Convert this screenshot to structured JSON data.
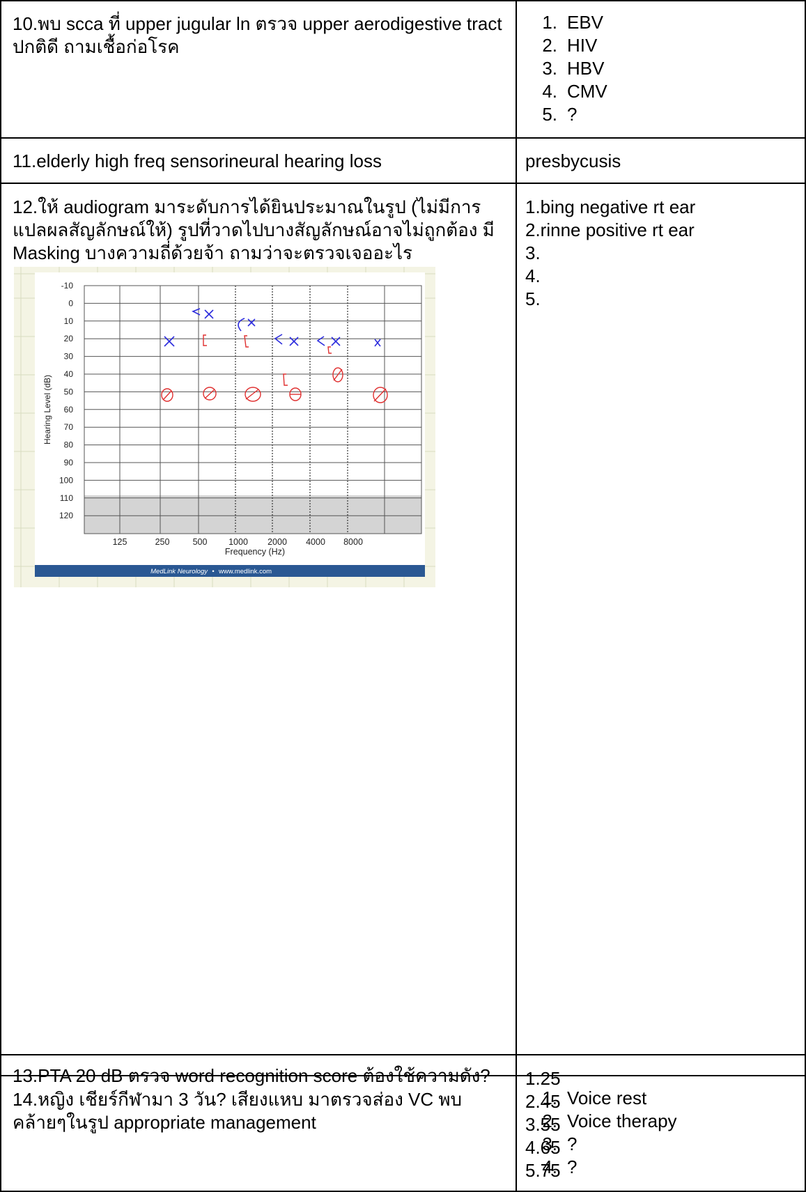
{
  "rows": [
    {
      "question": "10.พบ scca ที่ upper jugular ln ตรวจ upper aerodigestive tract ปกติดี ถามเชื้อก่อโรค",
      "answers": [
        {
          "n": "1.",
          "t": "EBV"
        },
        {
          "n": "2.",
          "t": "HIV"
        },
        {
          "n": "3.",
          "t": "HBV"
        },
        {
          "n": "4.",
          "t": "CMV"
        },
        {
          "n": "5.",
          "t": "?"
        }
      ]
    },
    {
      "question": "11.elderly high freq sensorineural hearing loss",
      "answer": "presbycusis"
    },
    {
      "question": "12.ให้ audiogram มาระดับการได้ยินประมาณในรูป (ไม่มีการแปลผลสัญลักษณ์ให้) รูปที่วาดไปบางสัญลักษณ์อาจไม่ถูกต้อง มี Masking บางความถี่ด้วยจ้า ถามว่าจะตรวจเจออะไร",
      "answers": [
        "1.bing negative rt ear",
        "2.rinne positive rt ear",
        "3.",
        "4.",
        "5."
      ],
      "audiogram": {
        "y_ticks": [
          "-10",
          "0",
          "10",
          "20",
          "30",
          "40",
          "50",
          "60",
          "70",
          "80",
          "90",
          "100",
          "110",
          "120"
        ],
        "x_ticks": [
          "125",
          "250",
          "500",
          "1000",
          "2000",
          "4000",
          "8000"
        ],
        "ylabel": "Hearing Level (dB)",
        "xlabel": "Frequency (Hz)",
        "footer_brand": "MedLink Neurology",
        "footer_sep": "•",
        "footer_url": "www.medlink.com"
      }
    },
    {
      "question": "13.PTA 20 dB ตรวจ word recognition score ต้องใช้ความดัง?",
      "answers": [
        "1.25",
        "2.45",
        "3.55",
        "4.65",
        "5.75"
      ]
    },
    {
      "question": "14.หญิง เชียร์กีฬามา 3 วัน? เสียงแหบ มาตรวจส่อง VC พบคล้ายๆในรูป appropriate management",
      "answers": [
        {
          "n": "1.",
          "t": "Voice rest"
        },
        {
          "n": "2.",
          "t": "Voice therapy"
        },
        {
          "n": "3.",
          "t": "?"
        },
        {
          "n": "4.",
          "t": "?"
        }
      ]
    }
  ]
}
